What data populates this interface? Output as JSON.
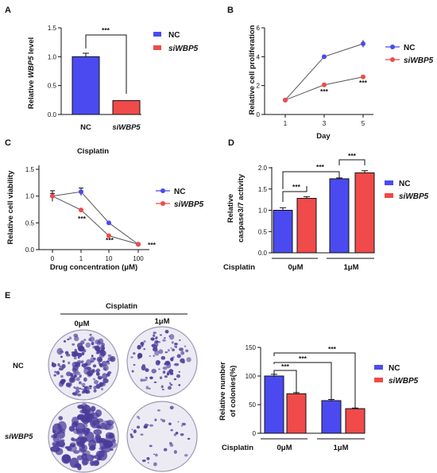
{
  "colors": {
    "nc": "#4a4af0",
    "si": "#f04a4a",
    "dish_bg": "#ecebf3",
    "stain": "#4a3a9a"
  },
  "panels": {
    "A": {
      "label": "A",
      "legend": {
        "nc": "NC",
        "si": "siWBP5"
      },
      "sig": "***",
      "ticks": [
        "0.0",
        "0.5",
        "1.0",
        "1.5"
      ],
      "ylabel_pre": "Relative ",
      "ylabel_em": "WBP5",
      "ylabel_post": " level"
    },
    "B": {
      "label": "B",
      "legend": {
        "nc": "NC",
        "si": "siWBP5"
      },
      "sig": [
        "***",
        "***"
      ],
      "yticks": [
        "0",
        "2",
        "4",
        "6"
      ],
      "xticks": [
        "1",
        "3",
        "5"
      ],
      "ylabel": "Relative cell proliferation",
      "xlabel": "Day"
    },
    "C": {
      "label": "C",
      "title": "Cisplatin",
      "legend": {
        "nc": "NC",
        "si": "siWBP5"
      },
      "sig": [
        "***",
        "***",
        "***"
      ],
      "yticks": [
        "0.0",
        "0.5",
        "1.0",
        "1.5"
      ],
      "xticks": [
        "0",
        "1",
        "10",
        "100"
      ],
      "ylabel": "Relative cell viability",
      "xlabel": "Drug concentration (μM)"
    },
    "D": {
      "label": "D",
      "legend": {
        "nc": "NC",
        "si": "siWBP5"
      },
      "sig": [
        "***",
        "***",
        "***"
      ],
      "yticks": [
        "0.0",
        "0.5",
        "1.0",
        "1.5",
        "2.0"
      ],
      "ylabel1": "Relative",
      "ylabel2": "caspase3/7 activity",
      "row_label": "Cisplatin",
      "groups": [
        "0μM",
        "1μM"
      ]
    },
    "E": {
      "label": "E",
      "header": "Cisplatin",
      "cols": [
        "0μM",
        "1μM"
      ],
      "rows": [
        "NC",
        "siWBP5"
      ],
      "legend": {
        "nc": "NC",
        "si": "siWBP5"
      },
      "sig": [
        "***",
        "***",
        "***"
      ],
      "yticks": [
        "0",
        "50",
        "100",
        "150"
      ],
      "ylabel1": "Relative number",
      "ylabel2": "of colonies(%)",
      "row_label": "Cisplatin",
      "groups": [
        "0μM",
        "1μM"
      ]
    }
  },
  "chart_data": [
    {
      "panel": "A",
      "type": "bar",
      "categories": [
        "NC",
        "siWBP5"
      ],
      "values": [
        1.0,
        0.24
      ],
      "errors": [
        0.06,
        0
      ],
      "ylabel": "Relative WBP5 level",
      "ylim": [
        0,
        1.5
      ]
    },
    {
      "panel": "B",
      "type": "line",
      "x": [
        1,
        3,
        5
      ],
      "xlabel": "Day",
      "ylabel": "Relative cell proliferation",
      "ylim": [
        0,
        6
      ],
      "series": [
        {
          "name": "NC",
          "values": [
            1.0,
            4.0,
            4.9
          ],
          "errors": [
            0,
            0.05,
            0.25
          ]
        },
        {
          "name": "siWBP5",
          "values": [
            1.0,
            2.05,
            2.6
          ],
          "errors": [
            0,
            0.05,
            0.05
          ]
        }
      ]
    },
    {
      "panel": "C",
      "type": "line",
      "title": "Cisplatin",
      "x": [
        "0",
        "1",
        "10",
        "100"
      ],
      "xlabel": "Drug concentration (μM)",
      "ylabel": "Relative cell viability",
      "ylim": [
        0,
        1.5
      ],
      "series": [
        {
          "name": "NC",
          "values": [
            1.0,
            1.08,
            0.5,
            0.1
          ],
          "errors": [
            0.1,
            0.07,
            0,
            0
          ]
        },
        {
          "name": "siWBP5",
          "values": [
            1.0,
            0.74,
            0.26,
            0.1
          ],
          "errors": [
            0.05,
            0,
            0,
            0
          ]
        }
      ]
    },
    {
      "panel": "D",
      "type": "bar",
      "categories": [
        "0μM",
        "1μM"
      ],
      "ylabel": "Relative caspase3/7 activity",
      "ylim": [
        0,
        2.0
      ],
      "series": [
        {
          "name": "NC",
          "values": [
            1.0,
            1.74
          ],
          "errors": [
            0.06,
            0.02
          ]
        },
        {
          "name": "siWBP5",
          "values": [
            1.28,
            1.88
          ],
          "errors": [
            0.04,
            0.05
          ]
        }
      ]
    },
    {
      "panel": "E",
      "type": "bar",
      "categories": [
        "0μM",
        "1μM"
      ],
      "ylabel": "Relative number of colonies(%)",
      "ylim": [
        0,
        150
      ],
      "series": [
        {
          "name": "NC",
          "values": [
            100,
            57
          ],
          "errors": [
            3,
            2
          ]
        },
        {
          "name": "siWBP5",
          "values": [
            69,
            43
          ],
          "errors": [
            2,
            1
          ]
        }
      ]
    }
  ]
}
